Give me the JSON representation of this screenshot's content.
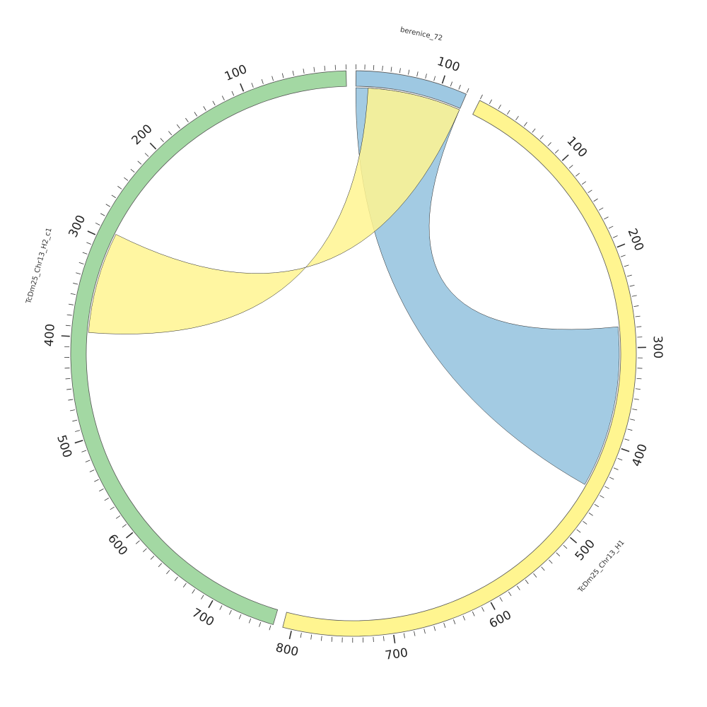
{
  "chart_data": {
    "type": "chord",
    "segments": [
      {
        "name": "berenice_72",
        "length": 130,
        "color": "#9ec8e2",
        "ticks": [
          "100"
        ]
      },
      {
        "name": "TcDm25_Chr13_H1",
        "length": 809,
        "color": "#fff590",
        "ticks": [
          "100",
          "200",
          "300",
          "400",
          "500",
          "600",
          "700",
          "800"
        ]
      },
      {
        "name": "TcDm25_Chr13_H2_c1",
        "length": 762,
        "color": "#a3d8a3",
        "ticks": [
          "100",
          "200",
          "300",
          "400",
          "500",
          "600",
          "700"
        ]
      }
    ],
    "links": [
      {
        "from": {
          "segment": "berenice_72",
          "start": 0,
          "end": 130
        },
        "to": {
          "segment": "TcDm25_Chr13_H1",
          "start": 278,
          "end": 448
        },
        "color": "#9ec8e2"
      },
      {
        "from": {
          "segment": "berenice_72",
          "start": 15,
          "end": 130
        },
        "to": {
          "segment": "TcDm25_Chr13_H2_c1",
          "start": 291,
          "end": 395
        },
        "color": "#fff590"
      }
    ]
  }
}
